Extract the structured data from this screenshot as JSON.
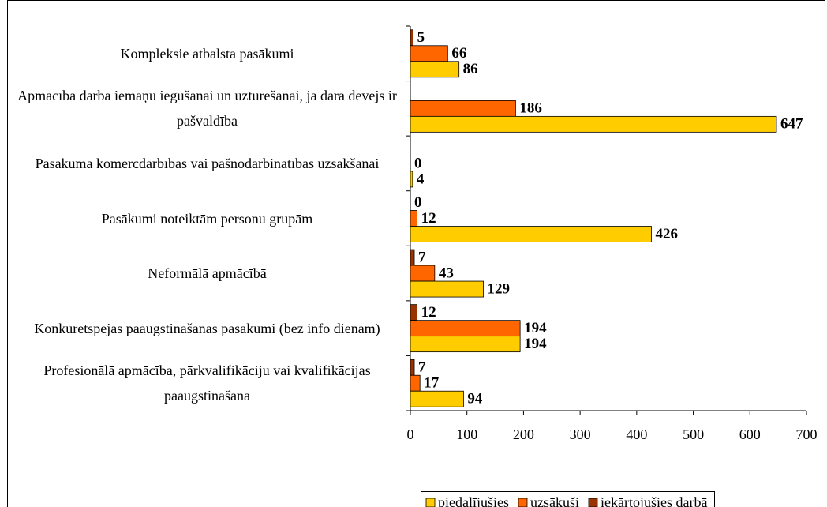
{
  "chart_data": {
    "type": "bar",
    "orientation": "horizontal",
    "categories": [
      "Kompleksie atbalsta pasākumi",
      "Apmācība darba iemaņu iegūšanai un uzturēšanai, ja dara devējs ir pašvaldība",
      "Pasākumā komercdarbības vai pašnodarbinātības uzsākšanai",
      "Pasākumi noteiktām personu grupām",
      "Neformālā  apmācībā",
      "Konkurētspējas paaugstināšanas pasākumi (bez info dienām)",
      "Profesionālā apmācība, pārkvalifikāciju vai kvalifikācijas paaugstināšana"
    ],
    "series": [
      {
        "name": "piedalījušies",
        "color": "#ffcc00",
        "values": [
          86,
          647,
          4,
          426,
          129,
          194,
          94
        ]
      },
      {
        "name": "uzsākuši",
        "color": "#ff6600",
        "values": [
          66,
          186,
          0,
          12,
          43,
          194,
          17
        ]
      },
      {
        "name": "iekārtojušies darbā",
        "color": "#993300",
        "values": [
          5,
          null,
          null,
          0,
          7,
          12,
          7
        ]
      }
    ],
    "xlim": [
      0,
      700
    ],
    "xticks": [
      0,
      100,
      200,
      300,
      400,
      500,
      600,
      700
    ],
    "grid": false,
    "legend": "bottom"
  }
}
